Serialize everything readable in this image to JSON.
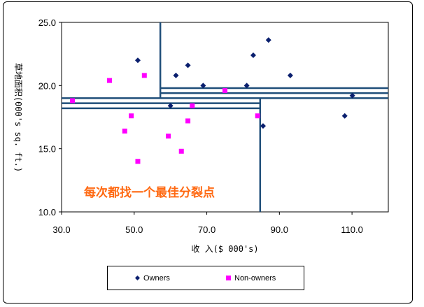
{
  "chart_data": {
    "type": "scatter",
    "title": "",
    "xlabel": "收 入($ 000's)",
    "ylabel": "草地面积(000's sq. ft.)",
    "xlim": [
      30,
      120
    ],
    "ylim": [
      10,
      25
    ],
    "xticks": [
      "30.0",
      "50.0",
      "70.0",
      "90.0",
      "110.0"
    ],
    "xtick_values": [
      30,
      50,
      70,
      90,
      110
    ],
    "yticks": [
      "10.0",
      "15.0",
      "20.0",
      "25.0"
    ],
    "ytick_values": [
      10,
      15,
      20,
      25
    ],
    "grid": false,
    "legend_placement": "bottom",
    "annotation": "每次都找一个最佳分裂点",
    "annotation_color": "#ff6a13",
    "split_line_color": "#1f4e79",
    "series": [
      {
        "name": "Owners",
        "marker": "diamond",
        "color": "#0a1f6e",
        "points": [
          [
            51.0,
            22.0
          ],
          [
            64.8,
            21.6
          ],
          [
            87.0,
            23.6
          ],
          [
            82.8,
            22.4
          ],
          [
            93.0,
            20.8
          ],
          [
            61.5,
            20.8
          ],
          [
            69.0,
            20.0
          ],
          [
            81.0,
            20.0
          ],
          [
            110.1,
            19.2
          ],
          [
            60.0,
            18.4
          ],
          [
            108.0,
            17.6
          ],
          [
            85.5,
            16.8
          ]
        ]
      },
      {
        "name": "Non-owners",
        "marker": "square",
        "color": "#ff00ff",
        "points": [
          [
            43.2,
            20.4
          ],
          [
            52.8,
            20.8
          ],
          [
            33.0,
            18.8
          ],
          [
            75.0,
            19.6
          ],
          [
            49.2,
            17.6
          ],
          [
            66.0,
            18.4
          ],
          [
            47.4,
            16.4
          ],
          [
            64.8,
            17.2
          ],
          [
            59.4,
            16.0
          ],
          [
            84.0,
            17.6
          ],
          [
            51.0,
            14.0
          ],
          [
            63.0,
            14.8
          ]
        ]
      }
    ],
    "splits": [
      {
        "orientation": "vertical",
        "x": 57.2,
        "y_from": 19.0,
        "y_to": 25.0
      },
      {
        "orientation": "vertical",
        "x": 84.7,
        "y_from": 10.0,
        "y_to": 19.0
      },
      {
        "orientation": "horizontal",
        "y": 18.2,
        "x_from": 30.0,
        "x_to": 84.7
      },
      {
        "orientation": "horizontal",
        "y": 18.6,
        "x_from": 30.0,
        "x_to": 84.7
      },
      {
        "orientation": "horizontal",
        "y": 19.0,
        "x_from": 30.0,
        "x_to": 120.0
      },
      {
        "orientation": "horizontal",
        "y": 19.4,
        "x_from": 57.2,
        "x_to": 120.0
      },
      {
        "orientation": "horizontal",
        "y": 19.8,
        "x_from": 57.2,
        "x_to": 120.0
      }
    ]
  },
  "legend": {
    "owners_label": "Owners",
    "nonowners_label": "Non-owners"
  }
}
